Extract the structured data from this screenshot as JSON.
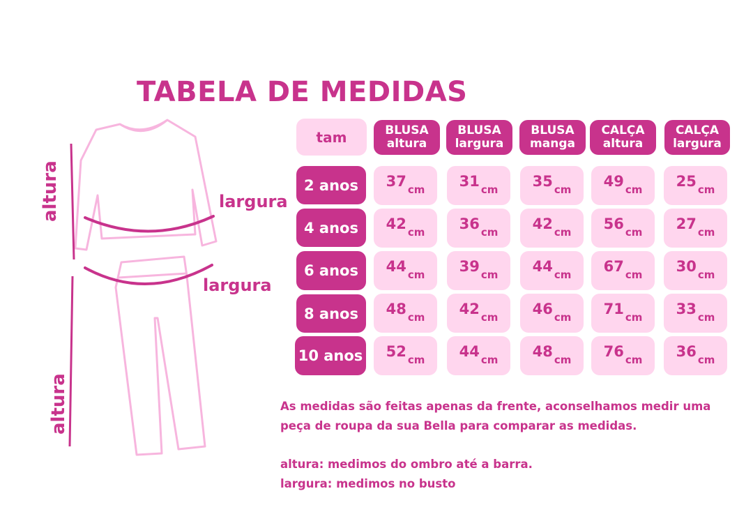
{
  "title": "TABELA DE MEDIDAS",
  "table": {
    "corner": "tam",
    "headers": [
      {
        "line1": "BLUSA",
        "line2": "altura"
      },
      {
        "line1": "BLUSA",
        "line2": "largura"
      },
      {
        "line1": "BLUSA",
        "line2": "manga"
      },
      {
        "line1": "CALÇA",
        "line2": "altura"
      },
      {
        "line1": "CALÇA",
        "line2": "largura"
      }
    ],
    "unit": "cm",
    "rows": [
      {
        "size": "2 anos",
        "values": [
          "37",
          "31",
          "35",
          "49",
          "25"
        ]
      },
      {
        "size": "4 anos",
        "values": [
          "42",
          "36",
          "42",
          "56",
          "27"
        ]
      },
      {
        "size": "6 anos",
        "values": [
          "44",
          "39",
          "44",
          "67",
          "30"
        ]
      },
      {
        "size": "8 anos",
        "values": [
          "48",
          "42",
          "46",
          "71",
          "33"
        ]
      },
      {
        "size": "10 anos",
        "values": [
          "52",
          "44",
          "48",
          "76",
          "36"
        ]
      }
    ]
  },
  "diagram": {
    "top_height_label": "altura",
    "top_width_label": "largura",
    "bottom_width_label": "largura",
    "bottom_height_label": "altura"
  },
  "notes": {
    "line1": "As medidas são feitas apenas da frente, aconselhamos medir uma",
    "line2": "peça de roupa da sua Bella para comparar as medidas.",
    "line3": "altura: medimos do ombro até a barra.",
    "line4": "largura: medimos no busto"
  },
  "colors": {
    "magenta": "#c8338c",
    "light_pink": "#ffd6ee",
    "outline_pink": "#f7b5de"
  }
}
